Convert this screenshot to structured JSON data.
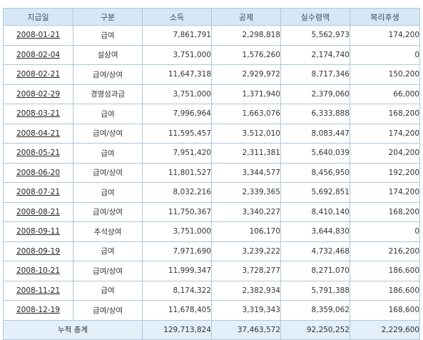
{
  "headers": [
    "지급일",
    "구분",
    "소득",
    "공제",
    "실수령액",
    "복리후생"
  ],
  "rows": [
    {
      "date": "2008-01-21",
      "type": "급여",
      "income": "7,861,791",
      "deduction": "2,298,818",
      "net": "5,562,973",
      "welfare": "174,200"
    },
    {
      "date": "2008-02-04",
      "type": "설상여",
      "income": "3,751,000",
      "deduction": "1,576,260",
      "net": "2,174,740",
      "welfare": "0"
    },
    {
      "date": "2008-02-21",
      "type": "급여/상여",
      "income": "11,647,318",
      "deduction": "2,929,972",
      "net": "8,717,346",
      "welfare": "150,200"
    },
    {
      "date": "2008-02-29",
      "type": "경영성과급",
      "income": "3,751,000",
      "deduction": "1,371,940",
      "net": "2,379,060",
      "welfare": "66,000"
    },
    {
      "date": "2008-03-21",
      "type": "급여",
      "income": "7,996,964",
      "deduction": "1,663,076",
      "net": "6,333,888",
      "welfare": "168,200"
    },
    {
      "date": "2008-04-21",
      "type": "급여/상여",
      "income": "11,595,457",
      "deduction": "3,512,010",
      "net": "8,083,447",
      "welfare": "174,200"
    },
    {
      "date": "2008-05-21",
      "type": "급여",
      "income": "7,951,420",
      "deduction": "2,311,381",
      "net": "5,640,039",
      "welfare": "204,200"
    },
    {
      "date": "2008-06-20",
      "type": "급여/상여",
      "income": "11,801,527",
      "deduction": "3,344,577",
      "net": "8,456,950",
      "welfare": "192,200"
    },
    {
      "date": "2008-07-21",
      "type": "급여",
      "income": "8,032,216",
      "deduction": "2,339,365",
      "net": "5,692,851",
      "welfare": "174,200"
    },
    {
      "date": "2008-08-21",
      "type": "급여/상여",
      "income": "11,750,367",
      "deduction": "3,340,227",
      "net": "8,410,140",
      "welfare": "168,200"
    },
    {
      "date": "2008-09-11",
      "type": "추석상여",
      "income": "3,751,000",
      "deduction": "106,170",
      "net": "3,644,830",
      "welfare": "0"
    },
    {
      "date": "2008-09-19",
      "type": "급여",
      "income": "7,971,690",
      "deduction": "3,239,222",
      "net": "4,732,468",
      "welfare": "216,200"
    },
    {
      "date": "2008-10-21",
      "type": "급여/상여",
      "income": "11,999,347",
      "deduction": "3,728,277",
      "net": "8,271,070",
      "welfare": "186,600"
    },
    {
      "date": "2008-11-21",
      "type": "급여",
      "income": "8,174,322",
      "deduction": "2,382,934",
      "net": "5,791,388",
      "welfare": "186,600"
    },
    {
      "date": "2008-12-19",
      "type": "급여/상여",
      "income": "11,678,405",
      "deduction": "3,319,343",
      "net": "8,359,062",
      "welfare": "168,600"
    }
  ],
  "total": {
    "label": "누적 총계",
    "income": "129,713,824",
    "deduction": "37,463,572",
    "net": "92,250,252",
    "welfare": "2,229,600"
  }
}
